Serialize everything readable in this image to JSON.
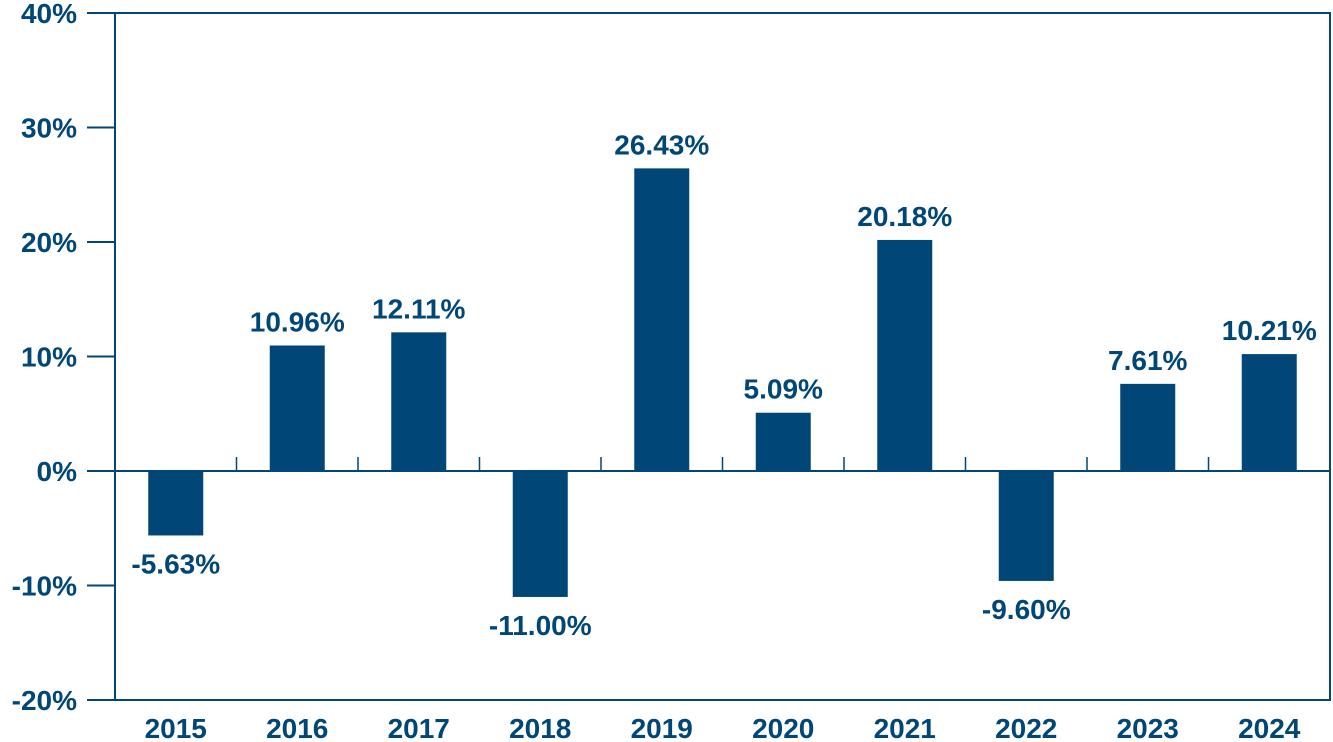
{
  "colors": {
    "bar": "#004677",
    "axis": "#004677",
    "text": "#004677",
    "background": "#ffffff"
  },
  "chart_data": {
    "type": "bar",
    "title": "",
    "xlabel": "",
    "ylabel": "",
    "categories": [
      "2015",
      "2016",
      "2017",
      "2018",
      "2019",
      "2020",
      "2021",
      "2022",
      "2023",
      "2024"
    ],
    "values": [
      -5.63,
      10.96,
      12.11,
      -11.0,
      26.43,
      5.09,
      20.18,
      -9.6,
      7.61,
      10.21
    ],
    "data_labels": [
      "-5.63%",
      "10.96%",
      "12.11%",
      "-11.00%",
      "26.43%",
      "5.09%",
      "20.18%",
      "-9.60%",
      "7.61%",
      "10.21%"
    ],
    "ylim": [
      -20,
      40
    ],
    "yticks": [
      40,
      30,
      20,
      10,
      0,
      -10,
      -20
    ],
    "ytick_labels": [
      "40%",
      "30%",
      "20%",
      "10%",
      "0%",
      "-10%",
      "-20%"
    ],
    "grid": false,
    "legend": "none"
  }
}
